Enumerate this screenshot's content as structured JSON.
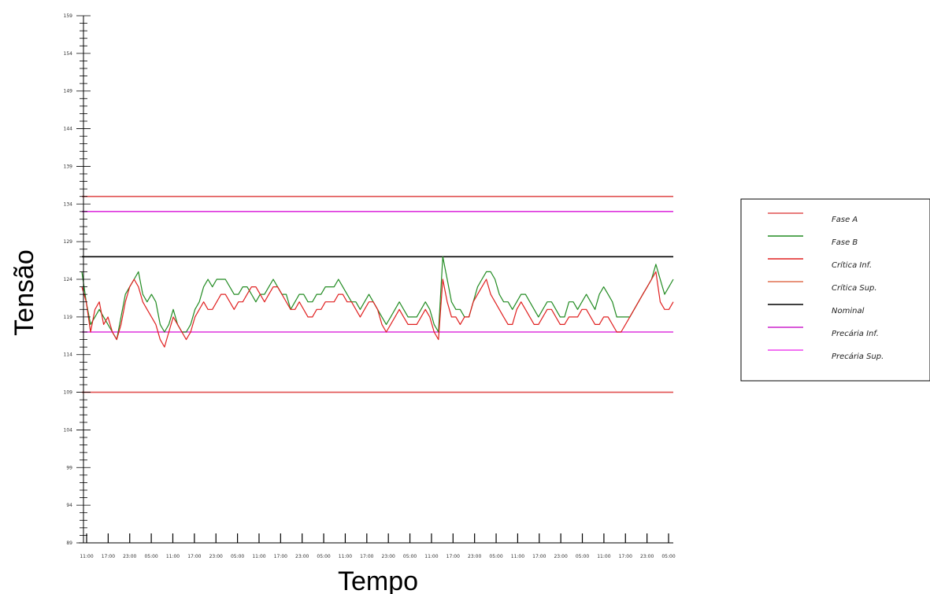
{
  "chart_data": {
    "type": "line",
    "xlabel": "Tempo",
    "ylabel": "Tensão",
    "ylim": [
      89,
      159
    ],
    "y_ticks": [
      89,
      94,
      99,
      104,
      109,
      114,
      119,
      124,
      129,
      134,
      139,
      144,
      149,
      154,
      159
    ],
    "x_tick_labels": [
      "11:00",
      "17:00",
      "23:00",
      "05:00",
      "11:00",
      "17:00",
      "23:00",
      "05:00",
      "11:00",
      "17:00",
      "23:00",
      "05:00",
      "11:00",
      "17:00",
      "23:00",
      "05:00",
      "11:00",
      "17:00",
      "23:00",
      "05:00",
      "11:00",
      "17:00",
      "23:00",
      "05:00",
      "11:00",
      "17:00",
      "23:00",
      "05:00"
    ],
    "legend_position": "right",
    "grid": false,
    "reference_lines": [
      {
        "name": "Crítica Inf.",
        "value": 109,
        "color": "#e05050"
      },
      {
        "name": "Crítica Sup.",
        "value": 135,
        "color": "#e05050"
      },
      {
        "name": "Nominal",
        "value": 127,
        "color": "#000000"
      },
      {
        "name": "Precária Inf.",
        "value": 117,
        "color": "#dd33dd"
      },
      {
        "name": "Precária Sup.",
        "value": 133,
        "color": "#dd33dd"
      }
    ],
    "series": [
      {
        "name": "Fase A",
        "color": "#e02020",
        "values": [
          123,
          121,
          117,
          120,
          121,
          118,
          119,
          117,
          116,
          118,
          121,
          123,
          124,
          123,
          121,
          120,
          119,
          118,
          116,
          115,
          117,
          119,
          118,
          117,
          116,
          117,
          119,
          120,
          121,
          120,
          120,
          121,
          122,
          122,
          121,
          120,
          121,
          121,
          122,
          123,
          123,
          122,
          121,
          122,
          123,
          123,
          122,
          121,
          120,
          120,
          121,
          120,
          119,
          119,
          120,
          120,
          121,
          121,
          121,
          122,
          122,
          121,
          121,
          120,
          119,
          120,
          121,
          121,
          120,
          118,
          117,
          118,
          119,
          120,
          119,
          118,
          118,
          118,
          119,
          120,
          119,
          117,
          116,
          124,
          121,
          119,
          119,
          118,
          119,
          119,
          121,
          122,
          123,
          124,
          122,
          121,
          120,
          119,
          118,
          118,
          120,
          121,
          120,
          119,
          118,
          118,
          119,
          120,
          120,
          119,
          118,
          118,
          119,
          119,
          119,
          120,
          120,
          119,
          118,
          118,
          119,
          119,
          118,
          117,
          117,
          118,
          119,
          120,
          121,
          122,
          123,
          124,
          125,
          121,
          120,
          120,
          121
        ]
      },
      {
        "name": "Fase B",
        "color": "#228b22",
        "values": [
          125,
          121,
          118,
          119,
          120,
          119,
          118,
          117,
          116,
          119,
          122,
          123,
          124,
          125,
          122,
          121,
          122,
          121,
          118,
          117,
          118,
          120,
          118,
          117,
          117,
          118,
          120,
          121,
          123,
          124,
          123,
          124,
          124,
          124,
          123,
          122,
          122,
          123,
          123,
          122,
          121,
          122,
          122,
          123,
          124,
          123,
          122,
          122,
          120,
          121,
          122,
          122,
          121,
          121,
          122,
          122,
          123,
          123,
          123,
          124,
          123,
          122,
          121,
          121,
          120,
          121,
          122,
          121,
          120,
          119,
          118,
          119,
          120,
          121,
          120,
          119,
          119,
          119,
          120,
          121,
          120,
          118,
          117,
          127,
          124,
          121,
          120,
          120,
          119,
          119,
          121,
          123,
          124,
          125,
          125,
          124,
          122,
          121,
          121,
          120,
          121,
          122,
          122,
          121,
          120,
          119,
          120,
          121,
          121,
          120,
          119,
          119,
          121,
          121,
          120,
          121,
          122,
          121,
          120,
          122,
          123,
          122,
          121,
          119,
          119,
          119,
          119,
          120,
          121,
          122,
          123,
          124,
          126,
          124,
          122,
          123,
          124
        ]
      }
    ]
  },
  "legend": {
    "items": [
      {
        "label": "Fase A",
        "color": "#e05050"
      },
      {
        "label": "Fase B",
        "color": "#228b22"
      },
      {
        "label": "Crítica Inf.",
        "color": "#e02020"
      },
      {
        "label": "Crítica Sup.",
        "color": "#e07050"
      },
      {
        "label": "Nominal",
        "color": "#000000"
      },
      {
        "label": "Precária Inf.",
        "color": "#cc22cc"
      },
      {
        "label": "Precária Sup.",
        "color": "#ee44ee"
      }
    ]
  }
}
